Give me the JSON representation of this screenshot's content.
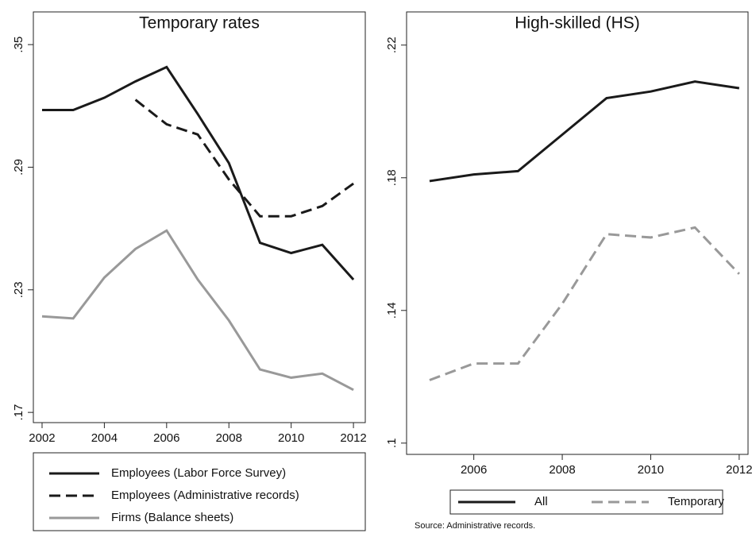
{
  "chart_data": [
    {
      "type": "line",
      "title": "Temporary rates",
      "x": [
        2002,
        2003,
        2004,
        2005,
        2006,
        2007,
        2008,
        2009,
        2010,
        2011,
        2012
      ],
      "series": [
        {
          "name": "Employees (Labor Force Survey)",
          "color": "#1a1a1a",
          "dash": "solid",
          "values": [
            0.318,
            0.318,
            0.324,
            0.332,
            0.339,
            0.316,
            0.292,
            0.253,
            0.248,
            0.252,
            0.235
          ]
        },
        {
          "name": "Employees (Administrative records)",
          "color": "#1a1a1a",
          "dash": "dashed",
          "values": [
            null,
            null,
            null,
            0.323,
            0.311,
            0.306,
            0.284,
            0.266,
            0.266,
            0.271,
            0.282
          ]
        },
        {
          "name": "Firms (Balance sheets)",
          "color": "#999999",
          "dash": "solid",
          "values": [
            0.217,
            0.216,
            0.236,
            0.25,
            0.259,
            0.235,
            0.215,
            0.191,
            0.187,
            0.189,
            0.181
          ]
        }
      ],
      "xlim": [
        2001.72,
        2012.38
      ],
      "xticks": [
        2002,
        2004,
        2006,
        2008,
        2010,
        2012
      ],
      "ylim": [
        0.165,
        0.366
      ],
      "yticks": [
        {
          "value": 0.17,
          "label": ".17"
        },
        {
          "value": 0.23,
          "label": ".23"
        },
        {
          "value": 0.29,
          "label": ".29"
        },
        {
          "value": 0.35,
          "label": ".35"
        }
      ],
      "legend": "bottom"
    },
    {
      "type": "line",
      "title": "High-skilled (HS)",
      "x": [
        2005,
        2006,
        2007,
        2008,
        2009,
        2010,
        2011,
        2012
      ],
      "series": [
        {
          "name": "All",
          "color": "#1a1a1a",
          "dash": "solid",
          "values": [
            0.179,
            0.181,
            0.182,
            0.193,
            0.204,
            0.206,
            0.209,
            0.207
          ]
        },
        {
          "name": "Temporary",
          "color": "#999999",
          "dash": "dashed",
          "values": [
            0.119,
            0.124,
            0.124,
            0.142,
            0.163,
            0.162,
            0.165,
            0.151
          ]
        }
      ],
      "xlim": [
        2004.48,
        2012.2
      ],
      "xticks": [
        2006,
        2008,
        2010,
        2012
      ],
      "ylim": [
        0.0966,
        0.23
      ],
      "yticks": [
        {
          "value": 0.1,
          "label": ".1"
        },
        {
          "value": 0.14,
          "label": ".14"
        },
        {
          "value": 0.18,
          "label": ".18"
        },
        {
          "value": 0.22,
          "label": ".22"
        }
      ],
      "legend": "bottom",
      "note": "Source: Administrative records."
    }
  ]
}
